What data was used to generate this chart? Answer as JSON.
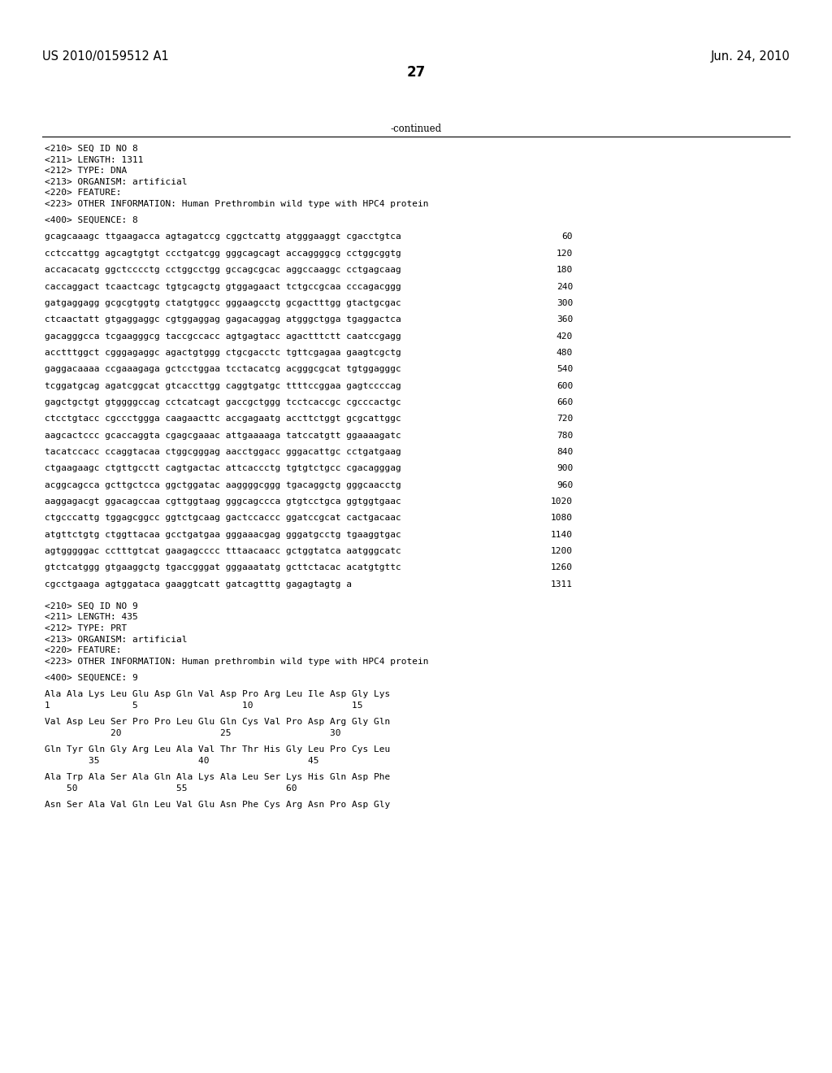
{
  "header_left": "US 2010/0159512 A1",
  "header_right": "Jun. 24, 2010",
  "page_number": "27",
  "continued_label": "-continued",
  "background_color": "#ffffff",
  "text_color": "#000000",
  "font_size_header": 10.5,
  "font_size_page": 12,
  "body_fontsize": 8.0,
  "lines": [
    {
      "text": "<210> SEQ ID NO 8",
      "num": null
    },
    {
      "text": "<211> LENGTH: 1311",
      "num": null
    },
    {
      "text": "<212> TYPE: DNA",
      "num": null
    },
    {
      "text": "<213> ORGANISM: artificial",
      "num": null
    },
    {
      "text": "<220> FEATURE:",
      "num": null
    },
    {
      "text": "<223> OTHER INFORMATION: Human Prethrombin wild type with HPC4 protein",
      "num": null
    },
    {
      "text": "",
      "num": null
    },
    {
      "text": "<400> SEQUENCE: 8",
      "num": null
    },
    {
      "text": "",
      "num": null
    },
    {
      "text": "gcagcaaagc ttgaagacca agtagatccg cggctcattg atgggaaggt cgacctgtca",
      "num": "60"
    },
    {
      "text": "",
      "num": null
    },
    {
      "text": "cctccattgg agcagtgtgt ccctgatcgg gggcagcagt accaggggcg cctggcggtg",
      "num": "120"
    },
    {
      "text": "",
      "num": null
    },
    {
      "text": "accacacatg ggctcccctg cctggcctgg gccagcgcac aggccaaggc cctgagcaag",
      "num": "180"
    },
    {
      "text": "",
      "num": null
    },
    {
      "text": "caccaggact tcaactcagc tgtgcagctg gtggagaact tctgccgcaa cccagacggg",
      "num": "240"
    },
    {
      "text": "",
      "num": null
    },
    {
      "text": "gatgaggagg gcgcgtggtg ctatgtggcc gggaagcctg gcgactttgg gtactgcgac",
      "num": "300"
    },
    {
      "text": "",
      "num": null
    },
    {
      "text": "ctcaactatt gtgaggaggc cgtggaggag gagacaggag atgggctgga tgaggactca",
      "num": "360"
    },
    {
      "text": "",
      "num": null
    },
    {
      "text": "gacagggcca tcgaagggcg taccgccacc agtgagtacc agactttctt caatccgagg",
      "num": "420"
    },
    {
      "text": "",
      "num": null
    },
    {
      "text": "acctttggct cgggagaggc agactgtggg ctgcgacctc tgttcgagaa gaagtcgctg",
      "num": "480"
    },
    {
      "text": "",
      "num": null
    },
    {
      "text": "gaggacaaaa ccgaaagaga gctcctggaa tcctacatcg acgggcgcat tgtggagggc",
      "num": "540"
    },
    {
      "text": "",
      "num": null
    },
    {
      "text": "tcggatgcag agatcggcat gtcaccttgg caggtgatgc ttttccggaa gagtccccag",
      "num": "600"
    },
    {
      "text": "",
      "num": null
    },
    {
      "text": "gagctgctgt gtggggccag cctcatcagt gaccgctggg tcctcaccgc cgcccactgc",
      "num": "660"
    },
    {
      "text": "",
      "num": null
    },
    {
      "text": "ctcctgtacc cgccctggga caagaacttc accgagaatg accttctggt gcgcattggc",
      "num": "720"
    },
    {
      "text": "",
      "num": null
    },
    {
      "text": "aagcactccc gcaccaggta cgagcgaaac attgaaaaga tatccatgtt ggaaaagatc",
      "num": "780"
    },
    {
      "text": "",
      "num": null
    },
    {
      "text": "tacatccacc ccaggtacaa ctggcgggag aacctggacc gggacattgc cctgatgaag",
      "num": "840"
    },
    {
      "text": "",
      "num": null
    },
    {
      "text": "ctgaagaagc ctgttgcctt cagtgactac attcaccctg tgtgtctgcc cgacagggag",
      "num": "900"
    },
    {
      "text": "",
      "num": null
    },
    {
      "text": "acggcagcca gcttgctcca ggctggatac aaggggcggg tgacaggctg gggcaacctg",
      "num": "960"
    },
    {
      "text": "",
      "num": null
    },
    {
      "text": "aaggagacgt ggacagccaa cgttggtaag gggcagccca gtgtcctgca ggtggtgaac",
      "num": "1020"
    },
    {
      "text": "",
      "num": null
    },
    {
      "text": "ctgcccattg tggagcggcc ggtctgcaag gactccaccc ggatccgcat cactgacaac",
      "num": "1080"
    },
    {
      "text": "",
      "num": null
    },
    {
      "text": "atgttctgtg ctggttacaa gcctgatgaa gggaaacgag gggatgcctg tgaaggtgac",
      "num": "1140"
    },
    {
      "text": "",
      "num": null
    },
    {
      "text": "agtgggggac cctttgtcat gaagagcccc tttaacaacc gctggtatca aatgggcatc",
      "num": "1200"
    },
    {
      "text": "",
      "num": null
    },
    {
      "text": "gtctcatggg gtgaaggctg tgaccgggat gggaaatatg gcttctacac acatgtgttc",
      "num": "1260"
    },
    {
      "text": "",
      "num": null
    },
    {
      "text": "cgcctgaaga agtggataca gaaggtcatt gatcagtttg gagagtagtg a",
      "num": "1311"
    },
    {
      "text": "",
      "num": null
    },
    {
      "text": "",
      "num": null
    },
    {
      "text": "<210> SEQ ID NO 9",
      "num": null
    },
    {
      "text": "<211> LENGTH: 435",
      "num": null
    },
    {
      "text": "<212> TYPE: PRT",
      "num": null
    },
    {
      "text": "<213> ORGANISM: artificial",
      "num": null
    },
    {
      "text": "<220> FEATURE:",
      "num": null
    },
    {
      "text": "<223> OTHER INFORMATION: Human prethrombin wild type with HPC4 protein",
      "num": null
    },
    {
      "text": "",
      "num": null
    },
    {
      "text": "<400> SEQUENCE: 9",
      "num": null
    },
    {
      "text": "",
      "num": null
    },
    {
      "text": "Ala Ala Lys Leu Glu Asp Gln Val Asp Pro Arg Leu Ile Asp Gly Lys",
      "num": null
    },
    {
      "text": "1               5                   10                  15",
      "num": null
    },
    {
      "text": "",
      "num": null
    },
    {
      "text": "Val Asp Leu Ser Pro Pro Leu Glu Gln Cys Val Pro Asp Arg Gly Gln",
      "num": null
    },
    {
      "text": "            20                  25                  30",
      "num": null
    },
    {
      "text": "",
      "num": null
    },
    {
      "text": "Gln Tyr Gln Gly Arg Leu Ala Val Thr Thr His Gly Leu Pro Cys Leu",
      "num": null
    },
    {
      "text": "        35                  40                  45",
      "num": null
    },
    {
      "text": "",
      "num": null
    },
    {
      "text": "Ala Trp Ala Ser Ala Gln Ala Lys Ala Leu Ser Lys His Gln Asp Phe",
      "num": null
    },
    {
      "text": "    50                  55                  60",
      "num": null
    },
    {
      "text": "",
      "num": null
    },
    {
      "text": "Asn Ser Ala Val Gln Leu Val Glu Asn Phe Cys Arg Asn Pro Asp Gly",
      "num": null
    }
  ]
}
